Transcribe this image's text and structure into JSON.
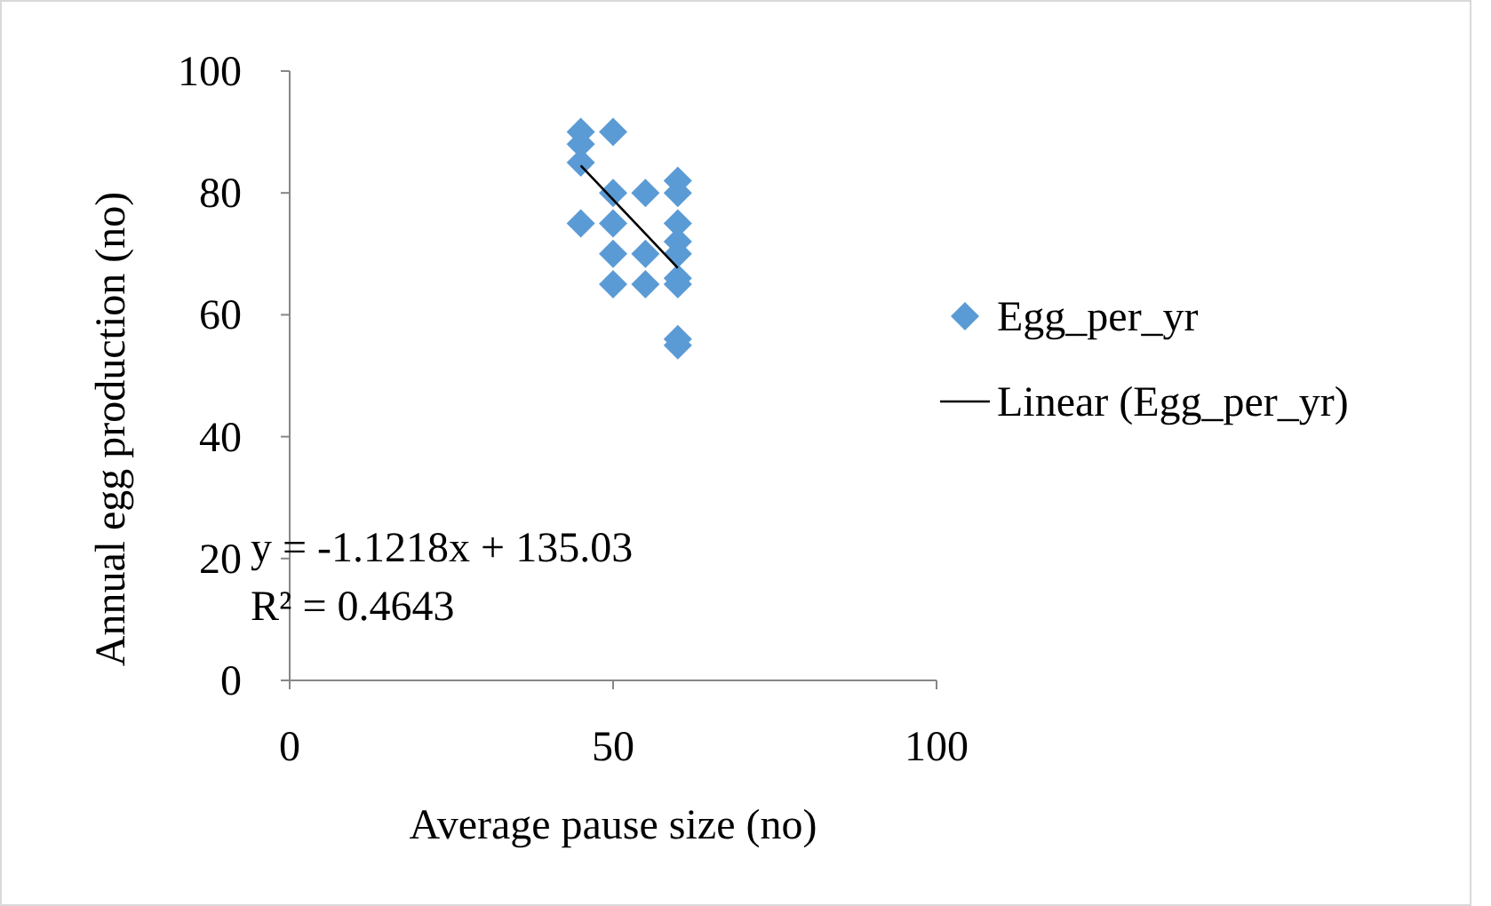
{
  "chart_data": {
    "type": "scatter",
    "xlabel": "Average pause size (no)",
    "ylabel": "Annual egg production (no)",
    "xlim": [
      0,
      100
    ],
    "xticks": [
      0,
      50,
      100
    ],
    "ylim": [
      0,
      100
    ],
    "yticks": [
      0,
      20,
      40,
      60,
      80,
      100
    ],
    "grid": false,
    "legend": "right",
    "series": [
      {
        "name": "Egg_per_yr",
        "color": "#5b9bd5",
        "marker": "diamond",
        "x": [
          45,
          45,
          45,
          45,
          50,
          50,
          50,
          50,
          50,
          55,
          55,
          55,
          60,
          60,
          60,
          60,
          60,
          60,
          60,
          60,
          60
        ],
        "values": [
          90,
          88,
          85,
          75,
          90,
          80,
          75,
          70,
          65,
          80,
          70,
          65,
          82,
          80,
          75,
          72,
          70,
          66,
          65,
          56,
          55
        ]
      },
      {
        "name": "Linear (Egg_per_yr)",
        "type": "line",
        "color": "#000000",
        "marker": "none",
        "x": [
          45,
          60
        ],
        "values": [
          84.5,
          67.7
        ]
      }
    ],
    "annotations": [
      "y = -1.1218x + 135.03",
      "R² = 0.4643"
    ]
  }
}
